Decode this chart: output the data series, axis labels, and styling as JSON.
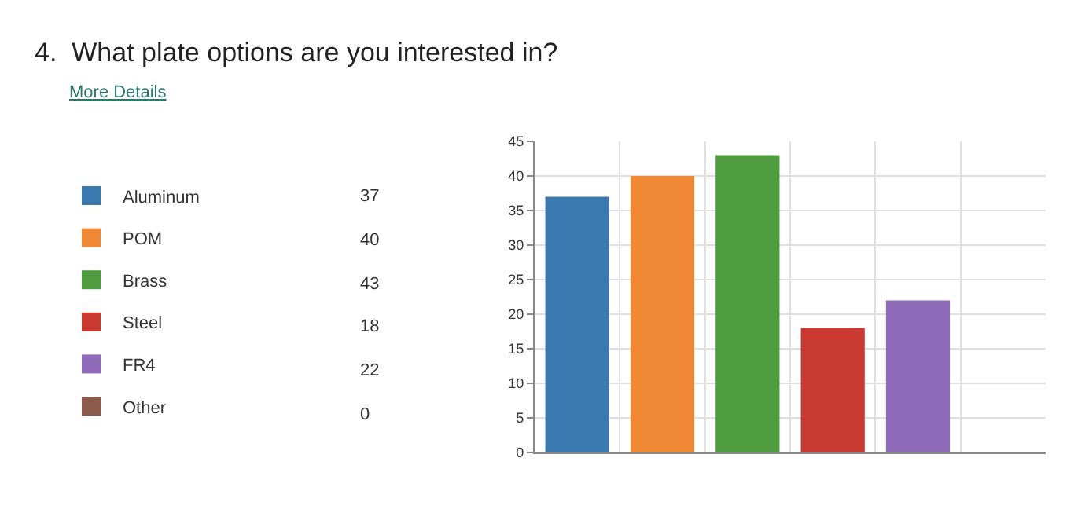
{
  "chart_data": {
    "type": "bar",
    "title": "4.  What plate options are you interested in?",
    "subtitle": "More Details",
    "categories": [
      null,
      null,
      null,
      null,
      null,
      null
    ],
    "series": [
      {
        "name": "Aluminum",
        "color": "#3a78b0",
        "values": [
          37,
          null,
          null,
          null,
          null,
          null
        ]
      },
      {
        "name": "POM",
        "color": "#f08836",
        "values": [
          null,
          40,
          null,
          null,
          null,
          null
        ]
      },
      {
        "name": "Brass",
        "color": "#4e9c3e",
        "values": [
          null,
          null,
          43,
          null,
          null,
          null
        ]
      },
      {
        "name": "Steel",
        "color": "#c83a32",
        "values": [
          null,
          null,
          null,
          18,
          null,
          null
        ]
      },
      {
        "name": "FR4",
        "color": "#8f6bb9",
        "values": [
          null,
          null,
          null,
          null,
          22,
          null
        ]
      },
      {
        "name": "Other",
        "color": "#8b5a4a",
        "values": [
          null,
          null,
          null,
          null,
          null,
          0
        ]
      }
    ],
    "annotations": [
      "37",
      "40",
      "43",
      "18",
      "22",
      "0"
    ],
    "ylim": [
      0,
      45
    ],
    "yticks": [
      0,
      5,
      10,
      15,
      20,
      25,
      30,
      35,
      40,
      45
    ],
    "grid": true,
    "legend": "left",
    "tick_labels": "y"
  }
}
